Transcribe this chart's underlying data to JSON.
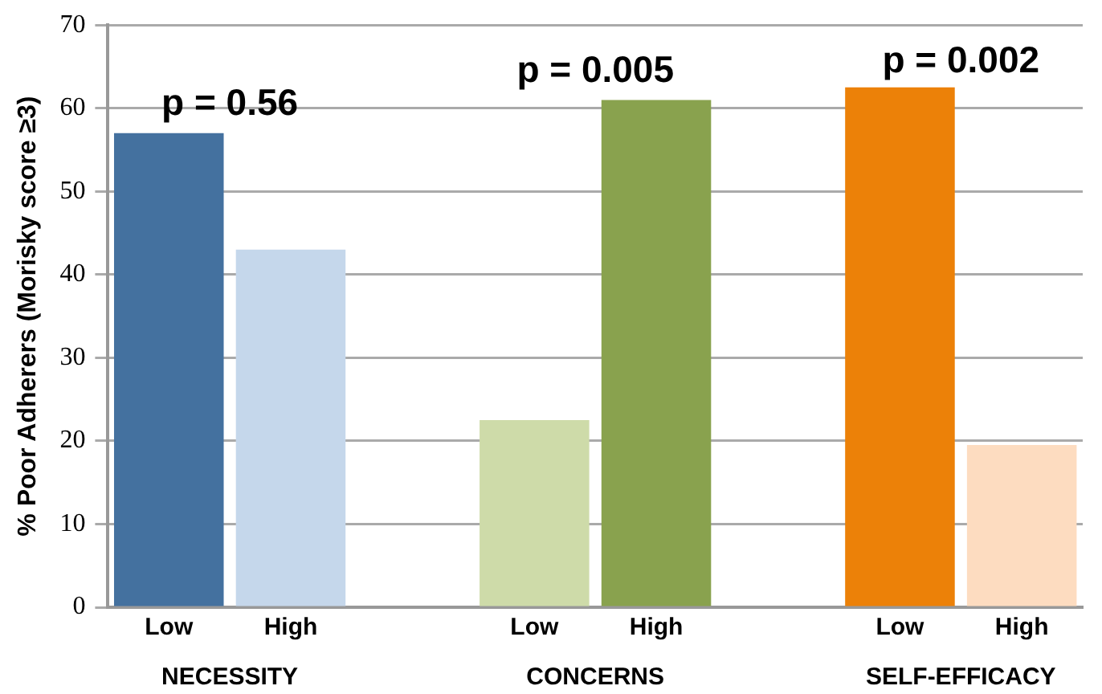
{
  "chart_data": {
    "type": "bar",
    "ylabel": "% Poor Adherers (Morisky score ≥3)",
    "categories": [
      "Low",
      "High",
      null,
      "Low",
      "High",
      null,
      "Low",
      "High"
    ],
    "values": [
      57,
      43,
      null,
      22.5,
      61,
      null,
      62.5,
      19.5
    ],
    "colors": [
      "#44719f",
      "#c5d7eb",
      null,
      "#cedba9",
      "#89a24e",
      null,
      "#ec8108",
      "#fddcc0"
    ],
    "ylim": [
      0,
      70
    ],
    "yticks": [
      0,
      10,
      20,
      30,
      40,
      50,
      60,
      70
    ],
    "grid": "y",
    "annotations": [
      "p = 0.56",
      "p = 0.005",
      "p = 0.002",
      "NECESSITY",
      "CONCERNS",
      "SELF-EFFICACY"
    ]
  }
}
